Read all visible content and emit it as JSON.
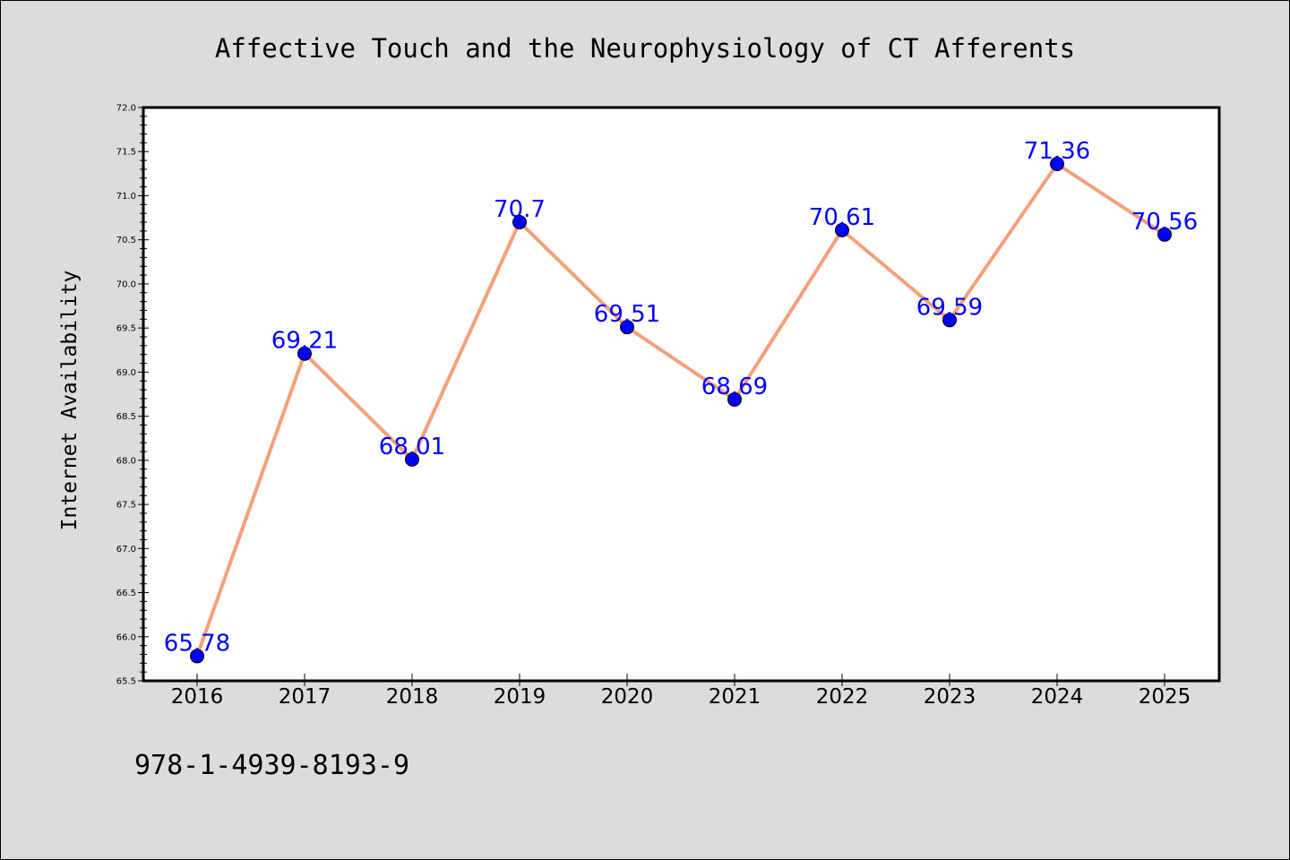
{
  "chart_data": {
    "type": "line",
    "title": "Affective Touch and the Neurophysiology of CT Afferents",
    "xlabel": "",
    "ylabel": "Internet Availability",
    "categories": [
      "2016",
      "2017",
      "2018",
      "2019",
      "2020",
      "2021",
      "2022",
      "2023",
      "2024",
      "2025"
    ],
    "series": [
      {
        "values": [
          65.78,
          69.21,
          68.01,
          70.7,
          69.51,
          68.69,
          70.61,
          69.59,
          71.36,
          70.56
        ],
        "data_labels": [
          "65.78",
          "69.21",
          "68.01",
          "70.7",
          "69.51",
          "68.69",
          "70.61",
          "69.59",
          "71.36",
          "70.56"
        ]
      }
    ],
    "ylim": [
      65.5,
      72.0
    ],
    "y_ticks": [
      "65.5",
      "66.0",
      "66.5",
      "67.0",
      "67.5",
      "68.0",
      "68.5",
      "69.0",
      "69.5",
      "70.0",
      "70.5",
      "71.0",
      "71.5",
      "72.0"
    ],
    "grid": false,
    "legend": "none",
    "colors": {
      "line": "#f4a07a",
      "marker": "#0000ff",
      "data_label": "#0000ff",
      "background": "#dcdcdc",
      "plot_background": "#ffffff"
    }
  },
  "footnote": "978-1-4939-8193-9"
}
